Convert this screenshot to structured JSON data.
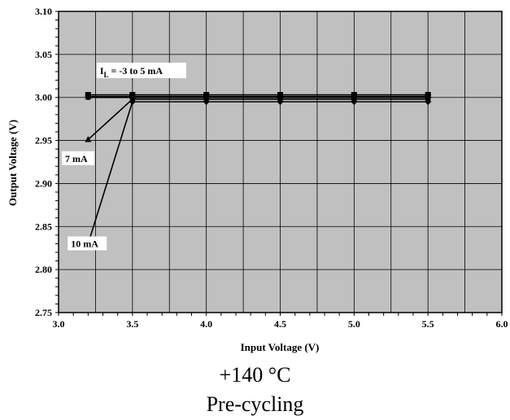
{
  "chart_data": {
    "type": "line",
    "xlabel": "Input Voltage (V)",
    "ylabel": "Output Voltage (V)",
    "xlim": [
      3.0,
      6.0
    ],
    "ylim": [
      2.75,
      3.1
    ],
    "x_ticks": [
      "3.0",
      "3.5",
      "4.0",
      "4.5",
      "5.0",
      "5.5",
      "6.0"
    ],
    "y_ticks": [
      "2.75",
      "2.80",
      "2.85",
      "2.90",
      "2.95",
      "3.00",
      "3.05",
      "3.10"
    ],
    "grid": true,
    "plot_background": "#c0c0c0",
    "series": [
      {
        "marker": "square",
        "x": [
          3.2,
          3.5,
          4.0,
          4.5,
          5.0,
          5.5
        ],
        "y": [
          3.003,
          3.003,
          3.003,
          3.003,
          3.003,
          3.003
        ]
      },
      {
        "marker": "square",
        "x": [
          3.2,
          3.5,
          4.0,
          4.5,
          5.0,
          5.5
        ],
        "y": [
          3.001,
          3.001,
          3.001,
          3.001,
          3.001,
          3.001
        ]
      },
      {
        "marker": "circle",
        "x": [
          3.2,
          3.5,
          4.0,
          4.5,
          5.0,
          5.5
        ],
        "y": [
          3.0,
          3.0,
          3.0,
          3.0,
          3.0,
          3.0
        ]
      },
      {
        "marker": "triangle",
        "x": [
          3.2,
          3.5,
          4.0,
          4.5,
          5.0,
          5.5
        ],
        "y": [
          2.951,
          2.998,
          2.998,
          2.998,
          2.998,
          2.998
        ]
      },
      {
        "marker": "diamond",
        "x": [
          3.2,
          3.5,
          4.0,
          4.5,
          5.0,
          5.5
        ],
        "y": [
          2.83,
          2.995,
          2.995,
          2.995,
          2.995,
          2.995
        ]
      }
    ],
    "annotations": [
      {
        "text_main": "I",
        "text_sub": "L",
        "text_rest": " = -3 to 5 mA",
        "x": 3.5,
        "y": 3.03
      },
      {
        "text": "7 mA",
        "x": 3.2,
        "y": 2.928
      },
      {
        "text": "10 mA",
        "x": 3.37,
        "y": 2.829
      }
    ]
  },
  "caption": {
    "line1": "+140 °C",
    "line2": "Pre-cycling"
  }
}
